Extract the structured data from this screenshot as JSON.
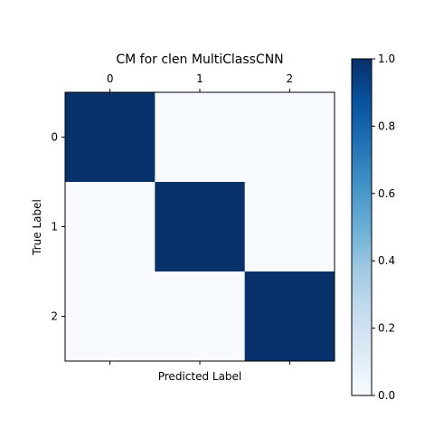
{
  "chart_data": {
    "type": "heatmap",
    "title": "CM for clen MultiClassCNN",
    "xlabel": "Predicted Label",
    "ylabel": "True Label",
    "x_tick_labels": [
      "0",
      "1",
      "2"
    ],
    "y_tick_labels": [
      "0",
      "1",
      "2"
    ],
    "x_ticks_position": "top",
    "values": [
      [
        1.0,
        0.0,
        0.0
      ],
      [
        0.0,
        1.0,
        0.0
      ],
      [
        0.0,
        0.0,
        1.0
      ]
    ],
    "colormap": "Blues",
    "color_low": "#f7fbff",
    "color_high": "#08306b",
    "colorbar": {
      "range": [
        0.0,
        1.0
      ],
      "tick_values": [
        0.0,
        0.2,
        0.4,
        0.6,
        0.8,
        1.0
      ],
      "tick_labels": [
        "0.0",
        "0.2",
        "0.4",
        "0.6",
        "0.8",
        "1.0"
      ]
    },
    "grid": false
  }
}
